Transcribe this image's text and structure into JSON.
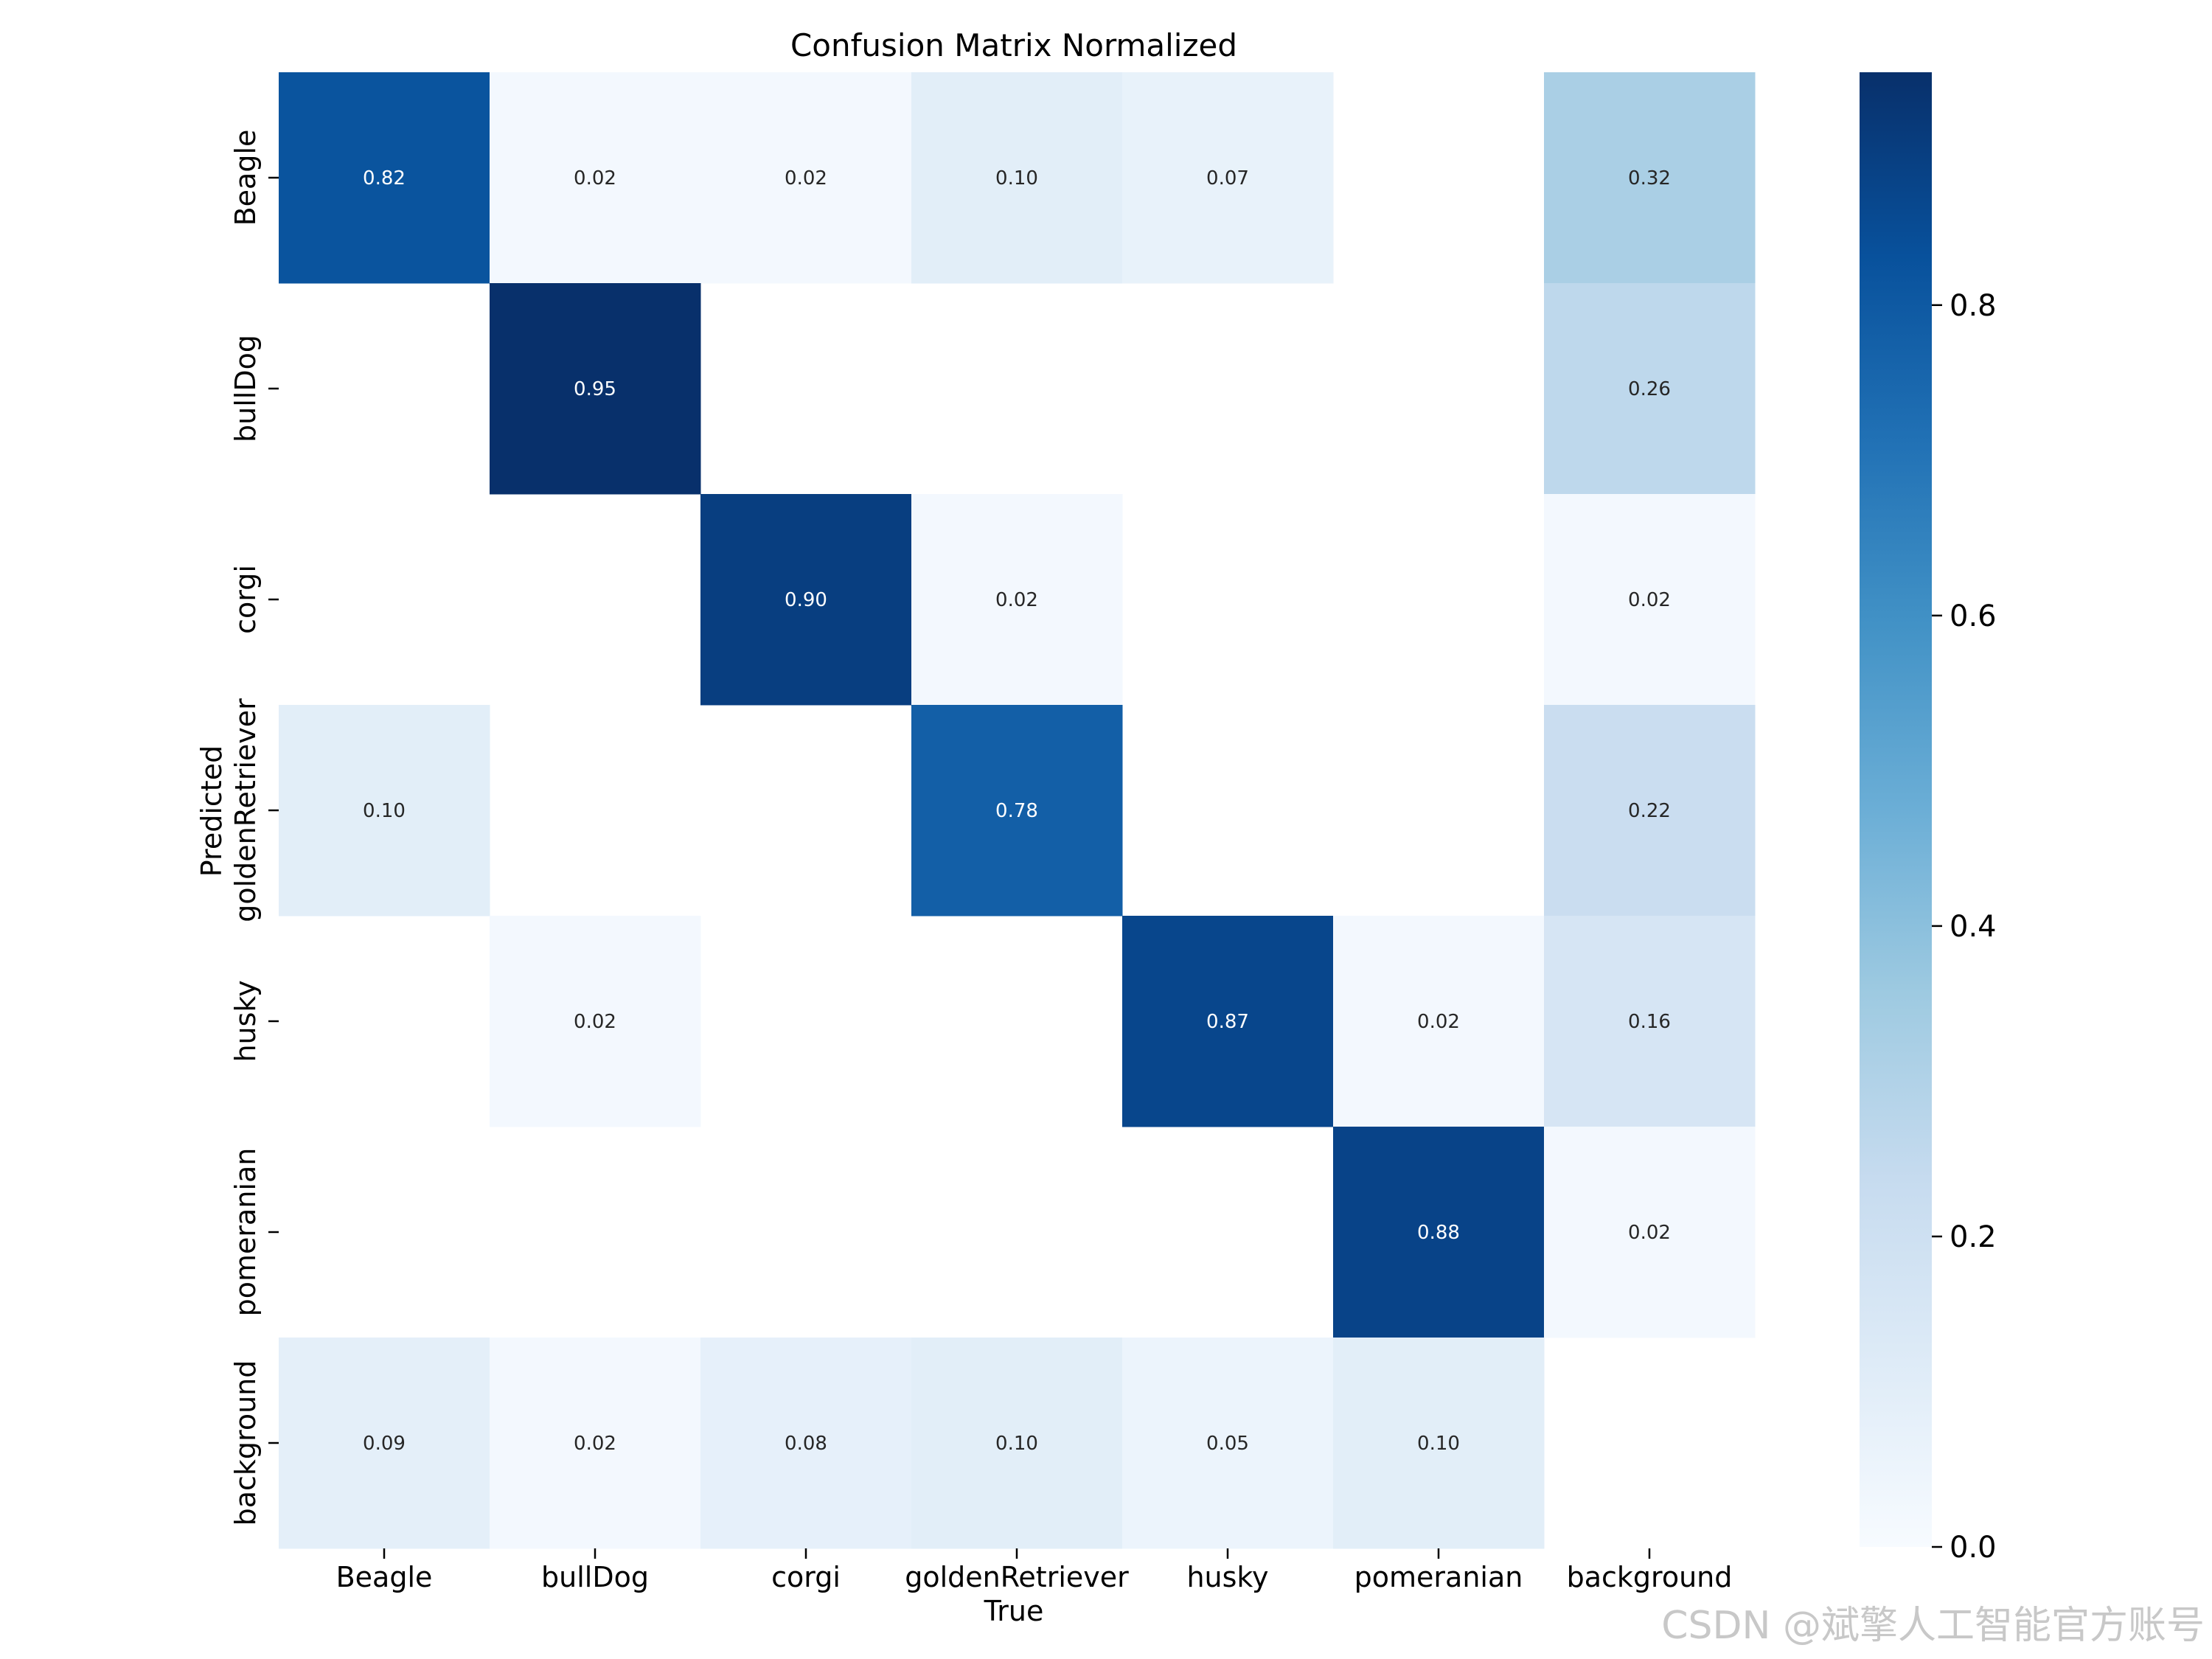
{
  "chart_data": {
    "type": "heatmap",
    "title": "Confusion Matrix Normalized",
    "xlabel": "True",
    "ylabel": "Predicted",
    "x_categories": [
      "Beagle",
      "bullDog",
      "corgi",
      "goldenRetriever",
      "husky",
      "pomeranian",
      "background"
    ],
    "y_categories": [
      "Beagle",
      "bullDog",
      "corgi",
      "goldenRetriever",
      "husky",
      "pomeranian",
      "background"
    ],
    "values": [
      [
        0.82,
        0.02,
        0.02,
        0.1,
        0.07,
        null,
        0.32
      ],
      [
        null,
        0.95,
        null,
        null,
        null,
        null,
        0.26
      ],
      [
        null,
        null,
        0.9,
        0.02,
        null,
        null,
        0.02
      ],
      [
        0.1,
        null,
        null,
        0.78,
        null,
        null,
        0.22
      ],
      [
        null,
        0.02,
        null,
        null,
        0.87,
        0.02,
        0.16
      ],
      [
        null,
        null,
        null,
        null,
        null,
        0.88,
        0.02
      ],
      [
        0.09,
        0.02,
        0.08,
        0.1,
        0.05,
        0.1,
        null
      ]
    ],
    "value_format": "0.00",
    "colormap": "Blues",
    "colorbar": {
      "vmin": 0.0,
      "vmax": 0.95,
      "ticks": [
        0.0,
        0.2,
        0.4,
        0.6,
        0.8
      ],
      "tick_labels": [
        "0.0",
        "0.2",
        "0.4",
        "0.6",
        "0.8"
      ]
    },
    "grid": false
  },
  "watermark": "CSDN @斌擎人工智能官方账号"
}
